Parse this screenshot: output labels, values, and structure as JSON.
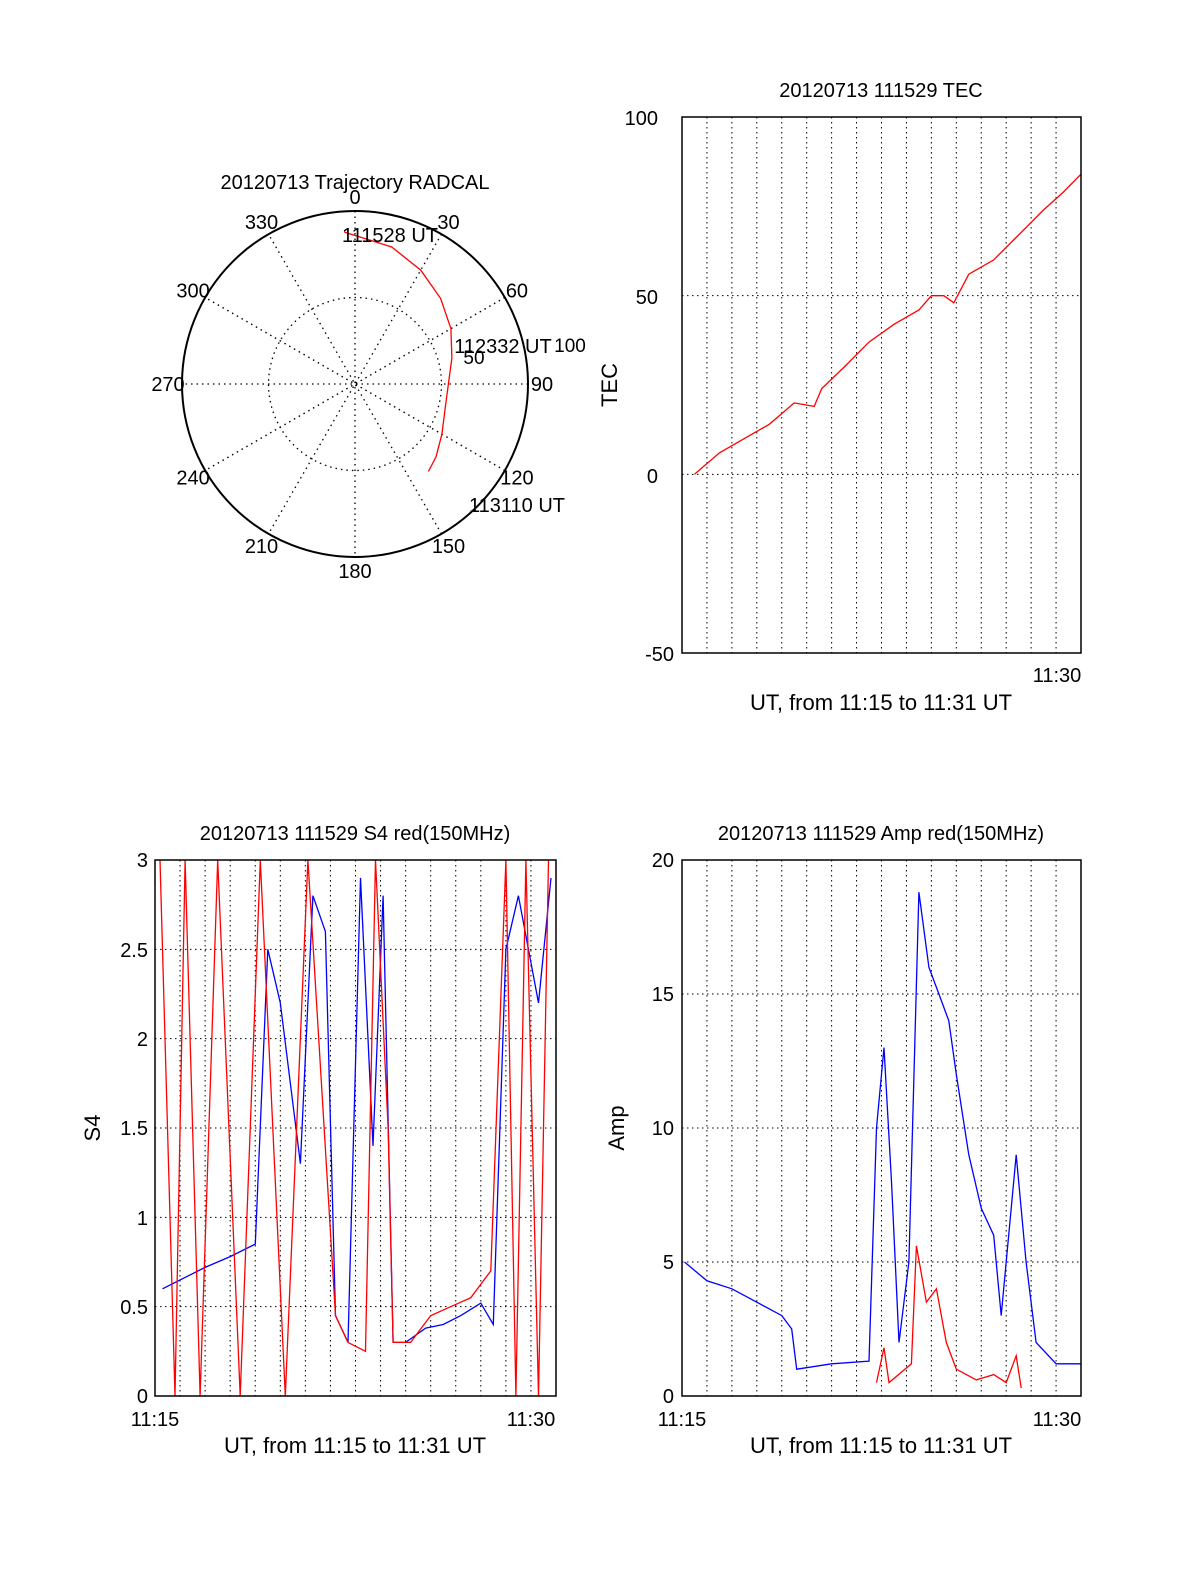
{
  "chart_data": [
    {
      "id": "trajectory",
      "type": "polar",
      "title": "20120713 Trajectory RADCAL",
      "angle_labels": [
        "0",
        "30",
        "60",
        "90",
        "120",
        "150",
        "180",
        "210",
        "240",
        "270",
        "300",
        "330"
      ],
      "radial_labels": [
        "50",
        "100"
      ],
      "rmax": 100,
      "annotations": [
        {
          "text": "111528 UT",
          "az": 10,
          "r": 90
        },
        {
          "text": "112332 UT",
          "az": 75,
          "r": 55
        },
        {
          "text": "113110 UT",
          "az": 140,
          "r": 100
        }
      ],
      "trajectory": {
        "color": "#ff0000",
        "points": [
          [
            -4,
            88
          ],
          [
            15,
            82
          ],
          [
            30,
            76
          ],
          [
            45,
            70
          ],
          [
            60,
            64
          ],
          [
            75,
            58
          ],
          [
            90,
            54
          ],
          [
            105,
            54
          ],
          [
            120,
            58
          ],
          [
            132,
            63
          ],
          [
            140,
            66
          ]
        ]
      }
    },
    {
      "id": "tec",
      "type": "line",
      "title": "20120713 111529 TEC",
      "xlabel": "UT, from 11:15 to 11:31 UT",
      "ylabel": "TEC",
      "xlim": [
        675,
        691
      ],
      "ylim": [
        -50,
        100
      ],
      "yticks": [
        "100",
        "50",
        "0",
        "-50"
      ],
      "xticks": [
        {
          "value": 690,
          "label": "11:30"
        }
      ],
      "grid": true,
      "series": [
        {
          "color": "#ff0000",
          "points": [
            [
              675.5,
              0
            ],
            [
              676.5,
              6
            ],
            [
              677.5,
              10
            ],
            [
              678.5,
              14
            ],
            [
              679.5,
              20
            ],
            [
              680.3,
              19
            ],
            [
              680.6,
              24
            ],
            [
              681.5,
              30
            ],
            [
              682.5,
              37
            ],
            [
              683.5,
              42
            ],
            [
              684.5,
              46
            ],
            [
              685,
              50
            ],
            [
              685.5,
              50
            ],
            [
              685.9,
              48
            ],
            [
              686.5,
              56
            ],
            [
              687.5,
              60
            ],
            [
              688.5,
              67
            ],
            [
              689.5,
              74
            ],
            [
              690.3,
              79
            ],
            [
              691,
              84
            ]
          ]
        }
      ]
    },
    {
      "id": "s4",
      "type": "line",
      "title": "20120713 111529 S4 red(150MHz)",
      "xlabel": "UT, from 11:15 to 11:31 UT",
      "ylabel": "S4",
      "xlim": [
        675,
        691
      ],
      "ylim": [
        0,
        3
      ],
      "yticks": [
        "0",
        "0.5",
        "1",
        "1.5",
        "2",
        "2.5",
        "3"
      ],
      "xticks": [
        {
          "value": 675,
          "label": "11:15"
        },
        {
          "value": 690,
          "label": "11:30"
        }
      ],
      "grid": true,
      "series": [
        {
          "color": "#0000ff",
          "points": [
            [
              675.3,
              0.6
            ],
            [
              676,
              0.65
            ],
            [
              677,
              0.72
            ],
            [
              678,
              0.78
            ],
            [
              679,
              0.85
            ],
            [
              679.5,
              2.5
            ],
            [
              680,
              2.2
            ],
            [
              680.8,
              1.3
            ],
            [
              681.3,
              2.8
            ],
            [
              681.8,
              2.6
            ],
            [
              682.2,
              0.45
            ],
            [
              682.7,
              0.3
            ],
            [
              683.2,
              2.9
            ],
            [
              683.7,
              1.4
            ],
            [
              684.1,
              2.8
            ],
            [
              684.5,
              0.3
            ],
            [
              685,
              0.3
            ],
            [
              685.8,
              0.38
            ],
            [
              686.5,
              0.4
            ],
            [
              687.2,
              0.45
            ],
            [
              688,
              0.52
            ],
            [
              688.5,
              0.4
            ],
            [
              689,
              2.5
            ],
            [
              689.5,
              2.8
            ],
            [
              690.3,
              2.2
            ],
            [
              690.8,
              2.9
            ]
          ]
        },
        {
          "color": "#ff0000",
          "points": [
            [
              675.2,
              3
            ],
            [
              675.8,
              0
            ],
            [
              676.2,
              3
            ],
            [
              676.8,
              0
            ],
            [
              677.5,
              3
            ],
            [
              678.4,
              0
            ],
            [
              679.2,
              3
            ],
            [
              680.2,
              0
            ],
            [
              681.1,
              3
            ],
            [
              682.2,
              0.45
            ],
            [
              682.7,
              0.3
            ],
            [
              683.4,
              0.25
            ],
            [
              683.8,
              3
            ],
            [
              684.3,
              1.5
            ],
            [
              684.5,
              0.3
            ],
            [
              685.2,
              0.3
            ],
            [
              686,
              0.45
            ],
            [
              686.8,
              0.5
            ],
            [
              687.6,
              0.55
            ],
            [
              688.4,
              0.7
            ],
            [
              689,
              3
            ],
            [
              689.4,
              0
            ],
            [
              689.8,
              3
            ],
            [
              690.3,
              0
            ],
            [
              690.7,
              3
            ]
          ]
        }
      ]
    },
    {
      "id": "amp",
      "type": "line",
      "title": "20120713 111529 Amp red(150MHz)",
      "xlabel": "UT, from 11:15 to 11:31 UT",
      "ylabel": "Amp",
      "xlim": [
        675,
        691
      ],
      "ylim": [
        0,
        20
      ],
      "yticks": [
        "0",
        "5",
        "10",
        "15",
        "20"
      ],
      "xticks": [
        {
          "value": 675,
          "label": "11:15"
        },
        {
          "value": 690,
          "label": "11:30"
        }
      ],
      "grid": true,
      "series": [
        {
          "color": "#0000ff",
          "points": [
            [
              675.1,
              5
            ],
            [
              676,
              4.3
            ],
            [
              677,
              4
            ],
            [
              678,
              3.5
            ],
            [
              679,
              3
            ],
            [
              679.4,
              2.5
            ],
            [
              679.6,
              1.0
            ],
            [
              681,
              1.2
            ],
            [
              682.5,
              1.3
            ],
            [
              682.8,
              10
            ],
            [
              683.1,
              13
            ],
            [
              683.4,
              8
            ],
            [
              683.7,
              2
            ],
            [
              684.1,
              5
            ],
            [
              684.5,
              18.8
            ],
            [
              684.9,
              16
            ],
            [
              685.3,
              15
            ],
            [
              685.7,
              14
            ],
            [
              686,
              12
            ],
            [
              686.5,
              9
            ],
            [
              687,
              7
            ],
            [
              687.5,
              6
            ],
            [
              687.8,
              3
            ],
            [
              688.1,
              6
            ],
            [
              688.4,
              9
            ],
            [
              688.8,
              5
            ],
            [
              689.2,
              2
            ],
            [
              690,
              1.2
            ],
            [
              691,
              1.2
            ]
          ]
        },
        {
          "color": "#ff0000",
          "points": [
            [
              682.8,
              0.5
            ],
            [
              683.1,
              1.8
            ],
            [
              683.3,
              0.5
            ],
            [
              684.2,
              1.2
            ],
            [
              684.4,
              5.6
            ],
            [
              684.8,
              3.5
            ],
            [
              685.2,
              4
            ],
            [
              685.6,
              2
            ],
            [
              686,
              1
            ],
            [
              686.8,
              0.6
            ],
            [
              687.5,
              0.8
            ],
            [
              688,
              0.5
            ],
            [
              688.4,
              1.5
            ],
            [
              688.6,
              0.3
            ]
          ]
        }
      ]
    }
  ]
}
